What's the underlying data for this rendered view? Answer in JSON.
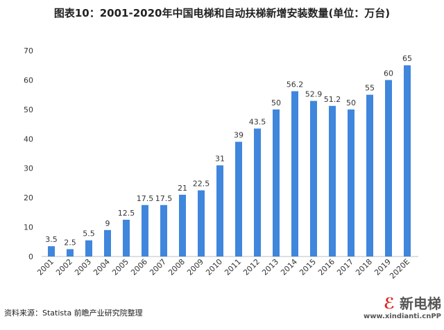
{
  "title": "图表10：2001-2020年中国电梯和自动扶梯新增安装数量(单位：万台)",
  "source": "资料来源：Statista 前瞻产业研究院整理",
  "logo": {
    "name": "新电梯",
    "url": "www.xindianti.cnPP"
  },
  "colors": {
    "bar": "#3f86dc",
    "axis": "#bfbfbf",
    "text": "#333333"
  },
  "chart_data": {
    "type": "bar",
    "title": "图表10：2001-2020年中国电梯和自动扶梯新增安装数量(单位：万台)",
    "xlabel": "",
    "ylabel": "",
    "ylim": [
      0,
      70
    ],
    "yticks": [
      0,
      10,
      20,
      30,
      40,
      50,
      60,
      70
    ],
    "grid": false,
    "categories": [
      "2001",
      "2002",
      "2003",
      "2004",
      "2005",
      "2006",
      "2007",
      "2008",
      "2009",
      "2010",
      "2011",
      "2012",
      "2013",
      "2014",
      "2015",
      "2016",
      "2017",
      "2018",
      "2019",
      "2020E"
    ],
    "values": [
      3.5,
      2.5,
      5.5,
      9,
      12.5,
      17.5,
      17.5,
      21,
      22.5,
      31,
      39,
      43.5,
      50,
      56.2,
      52.9,
      51.2,
      50,
      55,
      60,
      65
    ],
    "labels": [
      "3.5",
      "2.5",
      "5.5",
      "9",
      "12.5",
      "17.5",
      "17.5",
      "21",
      "22.5",
      "31",
      "39",
      "43.5",
      "50",
      "56.2",
      "52.9",
      "51.2",
      "50",
      "55",
      "60",
      "65"
    ]
  }
}
